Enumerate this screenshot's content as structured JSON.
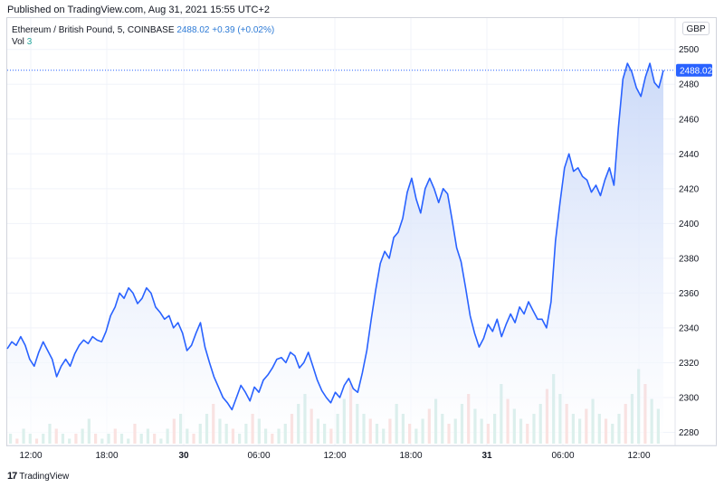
{
  "header": {
    "published": "Published on TradingView.com, Aug 31, 2021 15:55 UTC+2"
  },
  "legend": {
    "symbol": "Ethereum / British Pound, 5, COINBASE",
    "last": "2488.02",
    "change": "+0.39 (+0.02%)",
    "vol_label": "Vol",
    "vol_value": "3"
  },
  "currency_button": "GBP",
  "footer": {
    "brand_logo": "17",
    "brand_name": "TradingView"
  },
  "colors": {
    "line": "#2962ff",
    "fill_top": "#c9d8f8",
    "up_vol": "#a7d9cf",
    "down_vol": "#f4b6b2",
    "grid": "#f0f3fa"
  },
  "chart_data": {
    "type": "area",
    "title": "Ethereum / British Pound, 5, COINBASE",
    "ylabel": "",
    "xlabel": "",
    "currency": "GBP",
    "ylim": [
      2275,
      2505
    ],
    "yticks": [
      2280,
      2300,
      2320,
      2340,
      2360,
      2380,
      2400,
      2420,
      2440,
      2460,
      2480,
      2500
    ],
    "xticks": [
      "12:00",
      "18:00",
      "30",
      "06:00",
      "12:00",
      "18:00",
      "31",
      "06:00",
      "12:00"
    ],
    "bold_ticks": [
      "30",
      "31"
    ],
    "last_price": 2488.02,
    "series": [
      {
        "points": [
          [
            0,
            2328
          ],
          [
            0.3,
            2332
          ],
          [
            0.6,
            2330
          ],
          [
            0.9,
            2335
          ],
          [
            1.2,
            2330
          ],
          [
            1.5,
            2322
          ],
          [
            1.8,
            2318
          ],
          [
            2.1,
            2326
          ],
          [
            2.4,
            2332
          ],
          [
            2.7,
            2327
          ],
          [
            3.0,
            2322
          ],
          [
            3.3,
            2312
          ],
          [
            3.6,
            2318
          ],
          [
            3.9,
            2322
          ],
          [
            4.2,
            2318
          ],
          [
            4.5,
            2325
          ],
          [
            4.8,
            2330
          ],
          [
            5.1,
            2333
          ],
          [
            5.4,
            2331
          ],
          [
            5.7,
            2335
          ],
          [
            6.0,
            2333
          ],
          [
            6.3,
            2332
          ],
          [
            6.6,
            2338
          ],
          [
            6.9,
            2347
          ],
          [
            7.2,
            2352
          ],
          [
            7.5,
            2360
          ],
          [
            7.8,
            2357
          ],
          [
            8.1,
            2363
          ],
          [
            8.4,
            2360
          ],
          [
            8.7,
            2354
          ],
          [
            9.0,
            2357
          ],
          [
            9.3,
            2363
          ],
          [
            9.6,
            2360
          ],
          [
            9.9,
            2352
          ],
          [
            10.2,
            2349
          ],
          [
            10.5,
            2345
          ],
          [
            10.8,
            2347
          ],
          [
            11.1,
            2340
          ],
          [
            11.4,
            2343
          ],
          [
            11.7,
            2337
          ],
          [
            12.0,
            2327
          ],
          [
            12.3,
            2330
          ],
          [
            12.6,
            2337
          ],
          [
            12.9,
            2343
          ],
          [
            13.2,
            2329
          ],
          [
            13.5,
            2320
          ],
          [
            13.8,
            2312
          ],
          [
            14.1,
            2306
          ],
          [
            14.4,
            2300
          ],
          [
            14.7,
            2297
          ],
          [
            15.0,
            2293
          ],
          [
            15.3,
            2300
          ],
          [
            15.6,
            2307
          ],
          [
            15.9,
            2303
          ],
          [
            16.2,
            2298
          ],
          [
            16.5,
            2306
          ],
          [
            16.8,
            2303
          ],
          [
            17.1,
            2310
          ],
          [
            17.4,
            2313
          ],
          [
            17.7,
            2317
          ],
          [
            18.0,
            2322
          ],
          [
            18.3,
            2323
          ],
          [
            18.6,
            2320
          ],
          [
            18.9,
            2326
          ],
          [
            19.2,
            2324
          ],
          [
            19.5,
            2317
          ],
          [
            19.8,
            2320
          ],
          [
            20.1,
            2326
          ],
          [
            20.4,
            2318
          ],
          [
            20.7,
            2310
          ],
          [
            21.0,
            2304
          ],
          [
            21.3,
            2300
          ],
          [
            21.6,
            2297
          ],
          [
            21.9,
            2303
          ],
          [
            22.2,
            2300
          ],
          [
            22.5,
            2307
          ],
          [
            22.8,
            2311
          ],
          [
            23.1,
            2305
          ],
          [
            23.4,
            2303
          ],
          [
            23.7,
            2314
          ],
          [
            24.0,
            2327
          ],
          [
            24.3,
            2345
          ],
          [
            24.6,
            2362
          ],
          [
            24.9,
            2377
          ],
          [
            25.2,
            2384
          ],
          [
            25.5,
            2380
          ],
          [
            25.8,
            2392
          ],
          [
            26.1,
            2395
          ],
          [
            26.4,
            2403
          ],
          [
            26.7,
            2418
          ],
          [
            27.0,
            2426
          ],
          [
            27.3,
            2414
          ],
          [
            27.6,
            2406
          ],
          [
            27.9,
            2420
          ],
          [
            28.2,
            2426
          ],
          [
            28.5,
            2420
          ],
          [
            28.8,
            2412
          ],
          [
            29.1,
            2420
          ],
          [
            29.4,
            2417
          ],
          [
            29.7,
            2402
          ],
          [
            30.0,
            2386
          ],
          [
            30.3,
            2378
          ],
          [
            30.6,
            2363
          ],
          [
            30.9,
            2347
          ],
          [
            31.2,
            2337
          ],
          [
            31.5,
            2329
          ],
          [
            31.8,
            2334
          ],
          [
            32.1,
            2342
          ],
          [
            32.4,
            2338
          ],
          [
            32.7,
            2345
          ],
          [
            33.0,
            2335
          ],
          [
            33.3,
            2342
          ],
          [
            33.6,
            2348
          ],
          [
            33.9,
            2343
          ],
          [
            34.2,
            2352
          ],
          [
            34.5,
            2348
          ],
          [
            34.8,
            2355
          ],
          [
            35.1,
            2350
          ],
          [
            35.4,
            2345
          ],
          [
            35.7,
            2345
          ],
          [
            36.0,
            2340
          ],
          [
            36.3,
            2355
          ],
          [
            36.6,
            2390
          ],
          [
            36.9,
            2412
          ],
          [
            37.2,
            2432
          ],
          [
            37.5,
            2440
          ],
          [
            37.8,
            2430
          ],
          [
            38.1,
            2432
          ],
          [
            38.4,
            2427
          ],
          [
            38.7,
            2425
          ],
          [
            39.0,
            2418
          ],
          [
            39.3,
            2422
          ],
          [
            39.6,
            2416
          ],
          [
            39.9,
            2425
          ],
          [
            40.2,
            2432
          ],
          [
            40.5,
            2422
          ],
          [
            40.8,
            2455
          ],
          [
            41.1,
            2483
          ],
          [
            41.4,
            2492
          ],
          [
            41.7,
            2487
          ],
          [
            42.0,
            2478
          ],
          [
            42.3,
            2473
          ],
          [
            42.6,
            2484
          ],
          [
            42.9,
            2492
          ],
          [
            43.2,
            2481
          ],
          [
            43.5,
            2478
          ],
          [
            43.8,
            2488
          ]
        ]
      }
    ],
    "volume": {
      "note": "volume histogram, values in base units",
      "values": [
        2,
        1,
        3,
        2,
        1,
        2,
        4,
        3,
        2,
        1,
        2,
        3,
        5,
        2,
        1,
        2,
        3,
        2,
        1,
        4,
        2,
        3,
        2,
        1,
        3,
        5,
        6,
        3,
        2,
        4,
        6,
        8,
        5,
        4,
        3,
        2,
        4,
        6,
        5,
        3,
        2,
        3,
        4,
        6,
        8,
        10,
        7,
        5,
        4,
        3,
        6,
        9,
        12,
        8,
        6,
        5,
        4,
        3,
        5,
        8,
        6,
        4,
        3,
        5,
        7,
        9,
        6,
        4,
        5,
        8,
        10,
        7,
        5,
        4,
        6,
        12,
        9,
        7,
        5,
        4,
        6,
        8,
        11,
        14,
        10,
        8,
        6,
        5,
        7,
        9,
        6,
        5,
        4,
        6,
        8,
        10,
        15,
        12,
        9,
        7
      ]
    }
  }
}
